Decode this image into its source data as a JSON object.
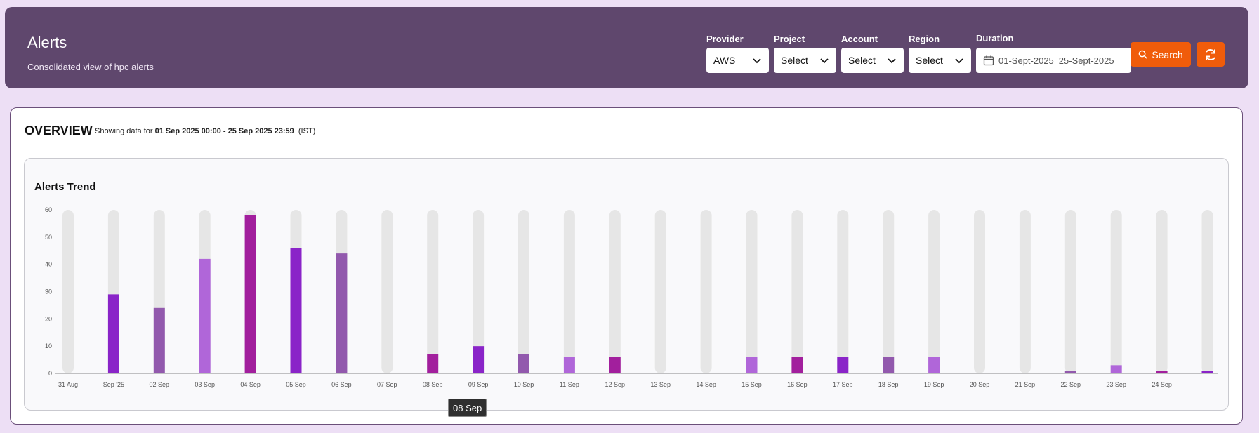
{
  "header": {
    "title": "Alerts",
    "subtitle": "Consolidated view of hpc alerts",
    "filters": {
      "provider": {
        "label": "Provider",
        "value": "AWS"
      },
      "project": {
        "label": "Project",
        "value": "Select"
      },
      "account": {
        "label": "Account",
        "value": "Select"
      },
      "region": {
        "label": "Region",
        "value": "Select"
      },
      "duration": {
        "label": "Duration",
        "start": "01-Sept-2025",
        "end": "25-Sept-2025"
      }
    },
    "search_label": "Search"
  },
  "overview": {
    "title": "OVERVIEW",
    "showing_prefix": "Showing data for",
    "range": "01 Sep 2025 00:00 - 25 Sep 2025 23:59",
    "timezone": "(IST)"
  },
  "tooltip": "08 Sep",
  "colors": {
    "header_bg": "#5f476d",
    "accent": "#f05c0a",
    "track": "#e6e6e6"
  },
  "chart_data": {
    "type": "bar",
    "title": "Alerts Trend",
    "categories": [
      "31 Aug",
      "Sep '25",
      "02 Sep",
      "03 Sep",
      "04 Sep",
      "05 Sep",
      "06 Sep",
      "07 Sep",
      "08 Sep",
      "09 Sep",
      "10 Sep",
      "11 Sep",
      "12 Sep",
      "13 Sep",
      "14 Sep",
      "15 Sep",
      "16 Sep",
      "17 Sep",
      "18 Sep",
      "19 Sep",
      "20 Sep",
      "21 Sep",
      "22 Sep",
      "23 Sep",
      "24 Sep",
      ""
    ],
    "values": [
      0,
      29,
      24,
      42,
      58,
      46,
      44,
      0,
      7,
      10,
      7,
      6,
      6,
      0,
      0,
      6,
      6,
      6,
      6,
      6,
      0,
      0,
      1,
      3,
      1,
      1
    ],
    "bar_colors": [
      "#8a24c8",
      "#8a24c8",
      "#9259ad",
      "#b066d9",
      "#a21f9d",
      "#8a24c8",
      "#9259ad",
      "#8a24c8",
      "#a21f9d",
      "#8a24c8",
      "#9259ad",
      "#b066d9",
      "#a21f9d",
      "#8a24c8",
      "#8a24c8",
      "#b066d9",
      "#a21f9d",
      "#8a24c8",
      "#9259ad",
      "#b066d9",
      "#8a24c8",
      "#8a24c8",
      "#9259ad",
      "#b066d9",
      "#a21f9d",
      "#8a24c8"
    ],
    "yticks": [
      0,
      10,
      20,
      30,
      40,
      50,
      60
    ],
    "ylim": [
      0,
      60
    ],
    "grid": false
  }
}
